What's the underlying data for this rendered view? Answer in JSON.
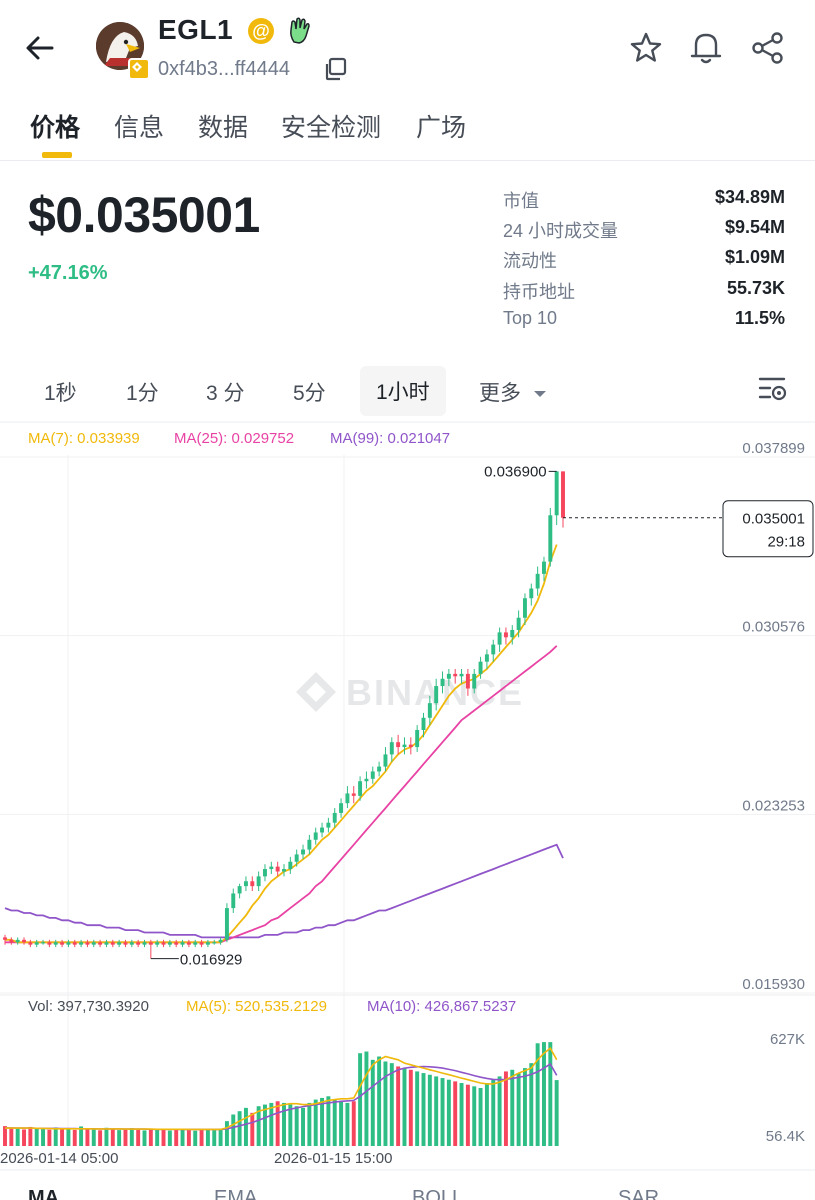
{
  "header": {
    "token_name": "EGL1",
    "address": "0xf4b3...ff4444",
    "icons": [
      "back-arrow-icon",
      "avatar",
      "at-icon",
      "hand-icon",
      "copy-icon",
      "star-icon",
      "bell-icon",
      "share-icon"
    ]
  },
  "tabs": [
    "价格",
    "信息",
    "数据",
    "安全检测",
    "广场"
  ],
  "price": {
    "value": "$0.035001",
    "change": "+47.16%"
  },
  "stats": [
    {
      "label": "市值",
      "value": "$34.89M"
    },
    {
      "label": "24 小时成交量",
      "value": "$9.54M"
    },
    {
      "label": "流动性",
      "value": "$1.09M"
    },
    {
      "label": "持币地址",
      "value": "55.73K"
    },
    {
      "label": "Top 10",
      "value": "11.5%"
    }
  ],
  "intervals": [
    "1秒",
    "1分",
    "3 分",
    "5分",
    "1小时",
    "更多"
  ],
  "active_interval": "1小时",
  "bottom_tabs": [
    "MA",
    "EMA",
    "BOLL",
    "SAR"
  ],
  "colors": {
    "up": "#2ebd85",
    "down": "#f6465d",
    "accent": "#f0b90b",
    "ma7": "#f0b90b",
    "ma25": "#e843a4",
    "ma99": "#8f55c9"
  },
  "chart_data": {
    "type": "candlestick",
    "indicators": {
      "ma7": "MA(7): 0.033939",
      "ma25": "MA(25): 0.029752",
      "ma99": "MA(99): 0.021047"
    },
    "price_ticks": [
      "0.037899",
      "0.030576",
      "0.023253",
      "0.015930"
    ],
    "ylim": [
      0.01593,
      0.037899
    ],
    "last_price": "0.035001",
    "countdown": "29:18",
    "high_label": "0.036900",
    "low_label": "0.016929",
    "watermark": "BINANCE",
    "x_ticks": [
      "2026-01-14 05:00",
      "2026-01-15 15:00"
    ],
    "candles": [
      [
        0.0178,
        0.0177,
        0.0175,
        0.0179
      ],
      [
        0.0177,
        0.0176,
        0.0175,
        0.0178
      ],
      [
        0.0176,
        0.0177,
        0.0175,
        0.0178
      ],
      [
        0.0177,
        0.0176,
        0.0175,
        0.0178
      ],
      [
        0.0176,
        0.0175,
        0.0174,
        0.0177
      ],
      [
        0.0175,
        0.0176,
        0.0174,
        0.0177
      ],
      [
        0.0176,
        0.0176,
        0.0175,
        0.0177
      ],
      [
        0.0176,
        0.0175,
        0.0174,
        0.0177
      ],
      [
        0.0175,
        0.0176,
        0.0174,
        0.0177
      ],
      [
        0.0176,
        0.0175,
        0.0174,
        0.0177
      ],
      [
        0.0175,
        0.0176,
        0.0174,
        0.0177
      ],
      [
        0.0176,
        0.0175,
        0.0174,
        0.0177
      ],
      [
        0.0175,
        0.0176,
        0.0174,
        0.0177
      ],
      [
        0.0176,
        0.0175,
        0.0174,
        0.0177
      ],
      [
        0.0175,
        0.0176,
        0.0174,
        0.0177
      ],
      [
        0.0176,
        0.0175,
        0.0174,
        0.0177
      ],
      [
        0.0175,
        0.0176,
        0.0174,
        0.0177
      ],
      [
        0.0176,
        0.0175,
        0.0174,
        0.0177
      ],
      [
        0.0175,
        0.0176,
        0.0174,
        0.0177
      ],
      [
        0.0176,
        0.0175,
        0.0174,
        0.0177
      ],
      [
        0.0175,
        0.0176,
        0.0174,
        0.0177
      ],
      [
        0.0176,
        0.0175,
        0.0174,
        0.0177
      ],
      [
        0.0175,
        0.0176,
        0.0174,
        0.0177
      ],
      [
        0.0176,
        0.0175,
        0.01693,
        0.0177
      ],
      [
        0.0175,
        0.0176,
        0.0174,
        0.0177
      ],
      [
        0.0176,
        0.0175,
        0.0174,
        0.0177
      ],
      [
        0.0175,
        0.0176,
        0.0174,
        0.0177
      ],
      [
        0.0176,
        0.0175,
        0.0174,
        0.0177
      ],
      [
        0.0175,
        0.0176,
        0.0174,
        0.0177
      ],
      [
        0.0176,
        0.0175,
        0.0174,
        0.0177
      ],
      [
        0.0175,
        0.0176,
        0.0174,
        0.0177
      ],
      [
        0.0176,
        0.0175,
        0.0174,
        0.0177
      ],
      [
        0.0175,
        0.0176,
        0.0174,
        0.0177
      ],
      [
        0.0176,
        0.0176,
        0.0175,
        0.0177
      ],
      [
        0.0176,
        0.0177,
        0.0175,
        0.0178
      ],
      [
        0.0177,
        0.019,
        0.0176,
        0.0192
      ],
      [
        0.019,
        0.0196,
        0.0188,
        0.0198
      ],
      [
        0.0196,
        0.0199,
        0.0194,
        0.02
      ],
      [
        0.0199,
        0.0201,
        0.0197,
        0.0203
      ],
      [
        0.0201,
        0.0199,
        0.0197,
        0.0203
      ],
      [
        0.0199,
        0.0203,
        0.0197,
        0.0205
      ],
      [
        0.0203,
        0.0206,
        0.0201,
        0.0208
      ],
      [
        0.0206,
        0.0207,
        0.0204,
        0.0209
      ],
      [
        0.0207,
        0.0205,
        0.0203,
        0.0209
      ],
      [
        0.0205,
        0.0206,
        0.0203,
        0.0208
      ],
      [
        0.0206,
        0.0209,
        0.0204,
        0.0211
      ],
      [
        0.0209,
        0.0212,
        0.0207,
        0.0214
      ],
      [
        0.0212,
        0.0214,
        0.021,
        0.0216
      ],
      [
        0.0214,
        0.0218,
        0.0212,
        0.022
      ],
      [
        0.0218,
        0.0221,
        0.0216,
        0.0223
      ],
      [
        0.0221,
        0.0223,
        0.0219,
        0.0225
      ],
      [
        0.0223,
        0.0225,
        0.0221,
        0.0227
      ],
      [
        0.0225,
        0.0229,
        0.0223,
        0.0231
      ],
      [
        0.0229,
        0.0233,
        0.0227,
        0.0235
      ],
      [
        0.0233,
        0.0237,
        0.0231,
        0.024
      ],
      [
        0.0237,
        0.0236,
        0.0233,
        0.024
      ],
      [
        0.0236,
        0.0242,
        0.0234,
        0.0244
      ],
      [
        0.0242,
        0.0243,
        0.0239,
        0.0246
      ],
      [
        0.0243,
        0.0246,
        0.0241,
        0.0248
      ],
      [
        0.0246,
        0.0248,
        0.0244,
        0.025
      ],
      [
        0.0248,
        0.0253,
        0.0246,
        0.0256
      ],
      [
        0.0253,
        0.0258,
        0.025,
        0.026
      ],
      [
        0.0258,
        0.0256,
        0.0253,
        0.0261
      ],
      [
        0.0256,
        0.0257,
        0.0253,
        0.026
      ],
      [
        0.0257,
        0.0256,
        0.0253,
        0.026
      ],
      [
        0.0256,
        0.0263,
        0.0254,
        0.0265
      ],
      [
        0.0263,
        0.0268,
        0.026,
        0.027
      ],
      [
        0.0268,
        0.0274,
        0.0265,
        0.0277
      ],
      [
        0.0274,
        0.0281,
        0.0271,
        0.0284
      ],
      [
        0.0281,
        0.0284,
        0.0278,
        0.0287
      ],
      [
        0.0284,
        0.0286,
        0.0281,
        0.0288
      ],
      [
        0.0286,
        0.0285,
        0.0282,
        0.0288
      ],
      [
        0.0285,
        0.0286,
        0.0282,
        0.0288
      ],
      [
        0.0286,
        0.028,
        0.0277,
        0.0288
      ],
      [
        0.028,
        0.0286,
        0.0278,
        0.0288
      ],
      [
        0.0286,
        0.0291,
        0.0284,
        0.0293
      ],
      [
        0.0291,
        0.0294,
        0.0288,
        0.0296
      ],
      [
        0.0294,
        0.0298,
        0.0291,
        0.03
      ],
      [
        0.0298,
        0.0303,
        0.0295,
        0.0305
      ],
      [
        0.0303,
        0.0301,
        0.0298,
        0.0305
      ],
      [
        0.0301,
        0.0304,
        0.0298,
        0.0306
      ],
      [
        0.0304,
        0.0309,
        0.0301,
        0.0312
      ],
      [
        0.0309,
        0.0317,
        0.0306,
        0.0319
      ],
      [
        0.0317,
        0.0321,
        0.0314,
        0.0323
      ],
      [
        0.0321,
        0.0327,
        0.0318,
        0.033
      ],
      [
        0.0327,
        0.0332,
        0.0324,
        0.0334
      ],
      [
        0.0332,
        0.0351,
        0.033,
        0.0354
      ],
      [
        0.0351,
        0.0369,
        0.0347,
        0.0369
      ],
      [
        0.0369,
        0.035,
        0.0346,
        0.0369
      ]
    ],
    "ma7": [
      0.0177,
      0.0177,
      0.0176,
      0.0176,
      0.0176,
      0.0176,
      0.0176,
      0.0176,
      0.0176,
      0.0176,
      0.0176,
      0.0176,
      0.0176,
      0.0176,
      0.0176,
      0.0176,
      0.0176,
      0.0176,
      0.0176,
      0.0176,
      0.0176,
      0.0176,
      0.0176,
      0.0176,
      0.0176,
      0.0176,
      0.0176,
      0.0176,
      0.0176,
      0.0176,
      0.0176,
      0.0176,
      0.0176,
      0.0176,
      0.0176,
      0.0178,
      0.0181,
      0.0184,
      0.0187,
      0.0191,
      0.0194,
      0.0198,
      0.0201,
      0.0203,
      0.0205,
      0.0206,
      0.0208,
      0.021,
      0.0212,
      0.0215,
      0.0218,
      0.022,
      0.0223,
      0.0226,
      0.0229,
      0.0232,
      0.0235,
      0.0238,
      0.024,
      0.0243,
      0.0246,
      0.025,
      0.0253,
      0.0255,
      0.0256,
      0.0258,
      0.0261,
      0.0265,
      0.0269,
      0.0273,
      0.0277,
      0.028,
      0.0282,
      0.0283,
      0.0284,
      0.0286,
      0.0288,
      0.0291,
      0.0294,
      0.0297,
      0.03,
      0.0303,
      0.0307,
      0.0311,
      0.0316,
      0.0323,
      0.0332,
      0.0339
    ],
    "ma25": [
      0.0176,
      0.0176,
      0.0176,
      0.0176,
      0.0176,
      0.0176,
      0.0176,
      0.0176,
      0.0176,
      0.0176,
      0.0176,
      0.0176,
      0.0176,
      0.0176,
      0.0176,
      0.0176,
      0.0176,
      0.0176,
      0.0176,
      0.0176,
      0.0176,
      0.0176,
      0.0176,
      0.0176,
      0.0176,
      0.0176,
      0.0176,
      0.0176,
      0.0176,
      0.0176,
      0.0176,
      0.0176,
      0.0176,
      0.0176,
      0.0176,
      0.0177,
      0.0178,
      0.0179,
      0.018,
      0.0181,
      0.0182,
      0.0183,
      0.0185,
      0.0186,
      0.0188,
      0.019,
      0.0192,
      0.0194,
      0.0196,
      0.0199,
      0.0201,
      0.0204,
      0.0207,
      0.021,
      0.0213,
      0.0216,
      0.0219,
      0.0222,
      0.0225,
      0.0228,
      0.0231,
      0.0234,
      0.0237,
      0.024,
      0.0243,
      0.0246,
      0.0249,
      0.0252,
      0.0255,
      0.0258,
      0.0261,
      0.0264,
      0.0267,
      0.0269,
      0.0271,
      0.0273,
      0.0275,
      0.0277,
      0.0279,
      0.0281,
      0.0283,
      0.0285,
      0.0287,
      0.0289,
      0.0291,
      0.0293,
      0.0295,
      0.02975
    ],
    "ma99": [
      0.019,
      0.0189,
      0.0189,
      0.0188,
      0.0188,
      0.0187,
      0.0187,
      0.0186,
      0.0186,
      0.0185,
      0.0185,
      0.0184,
      0.0184,
      0.0183,
      0.0183,
      0.0183,
      0.0182,
      0.0182,
      0.0182,
      0.0181,
      0.0181,
      0.0181,
      0.018,
      0.018,
      0.018,
      0.018,
      0.0179,
      0.0179,
      0.0179,
      0.0179,
      0.0179,
      0.0178,
      0.0178,
      0.0178,
      0.0178,
      0.0178,
      0.0178,
      0.0178,
      0.0178,
      0.0178,
      0.0178,
      0.0179,
      0.0179,
      0.0179,
      0.018,
      0.018,
      0.018,
      0.0181,
      0.0181,
      0.0182,
      0.0182,
      0.0183,
      0.0183,
      0.0184,
      0.0185,
      0.0185,
      0.0186,
      0.0187,
      0.0188,
      0.0189,
      0.0189,
      0.019,
      0.0191,
      0.0192,
      0.0193,
      0.0194,
      0.0195,
      0.0196,
      0.0197,
      0.0198,
      0.0199,
      0.02,
      0.0201,
      0.0202,
      0.0203,
      0.0204,
      0.0205,
      0.0206,
      0.0207,
      0.0208,
      0.0209,
      0.021,
      0.0211,
      0.0212,
      0.0213,
      0.0214,
      0.0215,
      0.0216,
      0.02105
    ],
    "volume": {
      "label": "Vol: 397,730.3920",
      "ma5_label": "MA(5): 520,535.2129",
      "ma10_label": "MA(10): 426,867.5237",
      "ticks": [
        "627K",
        "56.4K"
      ],
      "ylim": [
        0,
        700000
      ],
      "values": [
        120000,
        110000,
        105000,
        100000,
        115000,
        108000,
        102000,
        98000,
        112000,
        106000,
        101000,
        97000,
        118000,
        104000,
        99000,
        95000,
        110000,
        100000,
        96000,
        102000,
        108000,
        98000,
        94000,
        100000,
        104000,
        97000,
        93000,
        99000,
        103000,
        96000,
        92000,
        98000,
        101000,
        95000,
        105000,
        150000,
        190000,
        210000,
        230000,
        200000,
        240000,
        250000,
        260000,
        270000,
        260000,
        250000,
        240000,
        230000,
        260000,
        280000,
        290000,
        300000,
        280000,
        270000,
        260000,
        270000,
        560000,
        570000,
        520000,
        540000,
        510000,
        500000,
        480000,
        470000,
        460000,
        450000,
        440000,
        430000,
        420000,
        410000,
        400000,
        390000,
        380000,
        370000,
        360000,
        350000,
        380000,
        400000,
        420000,
        450000,
        460000,
        440000,
        470000,
        500000,
        620000,
        627000,
        627000,
        397730
      ],
      "ma5": [
        108000,
        108000,
        108000,
        108000,
        108000,
        107000,
        106000,
        105000,
        104000,
        104000,
        104000,
        104000,
        104000,
        104000,
        103000,
        103000,
        103000,
        103000,
        103000,
        102000,
        102000,
        102000,
        102000,
        102000,
        101000,
        101000,
        101000,
        101000,
        101000,
        100000,
        100000,
        100000,
        100000,
        100000,
        100000,
        110000,
        130000,
        150000,
        170000,
        190000,
        210000,
        220000,
        230000,
        240000,
        250000,
        255000,
        255000,
        250000,
        250000,
        255000,
        265000,
        275000,
        280000,
        285000,
        285000,
        290000,
        360000,
        430000,
        490000,
        520000,
        540000,
        530000,
        520000,
        500000,
        490000,
        480000,
        470000,
        460000,
        450000,
        440000,
        430000,
        420000,
        410000,
        400000,
        390000,
        380000,
        375000,
        375000,
        385000,
        400000,
        420000,
        440000,
        455000,
        470000,
        520000,
        560000,
        590000,
        520535
      ],
      "ma10": [
        109000,
        109000,
        108000,
        108000,
        108000,
        107000,
        107000,
        106000,
        106000,
        105000,
        105000,
        105000,
        104000,
        104000,
        104000,
        103000,
        103000,
        103000,
        103000,
        102000,
        102000,
        102000,
        102000,
        101000,
        101000,
        101000,
        101000,
        101000,
        100000,
        100000,
        100000,
        100000,
        100000,
        100000,
        100000,
        104000,
        112000,
        122000,
        132000,
        142000,
        155000,
        170000,
        185000,
        200000,
        212000,
        222000,
        230000,
        238000,
        244000,
        250000,
        255000,
        260000,
        265000,
        270000,
        272000,
        275000,
        300000,
        330000,
        360000,
        390000,
        420000,
        440000,
        460000,
        470000,
        475000,
        478000,
        480000,
        478000,
        475000,
        470000,
        462000,
        455000,
        445000,
        435000,
        425000,
        415000,
        408000,
        402000,
        400000,
        402000,
        408000,
        414000,
        422000,
        432000,
        448000,
        470000,
        495000,
        426867
      ]
    }
  }
}
